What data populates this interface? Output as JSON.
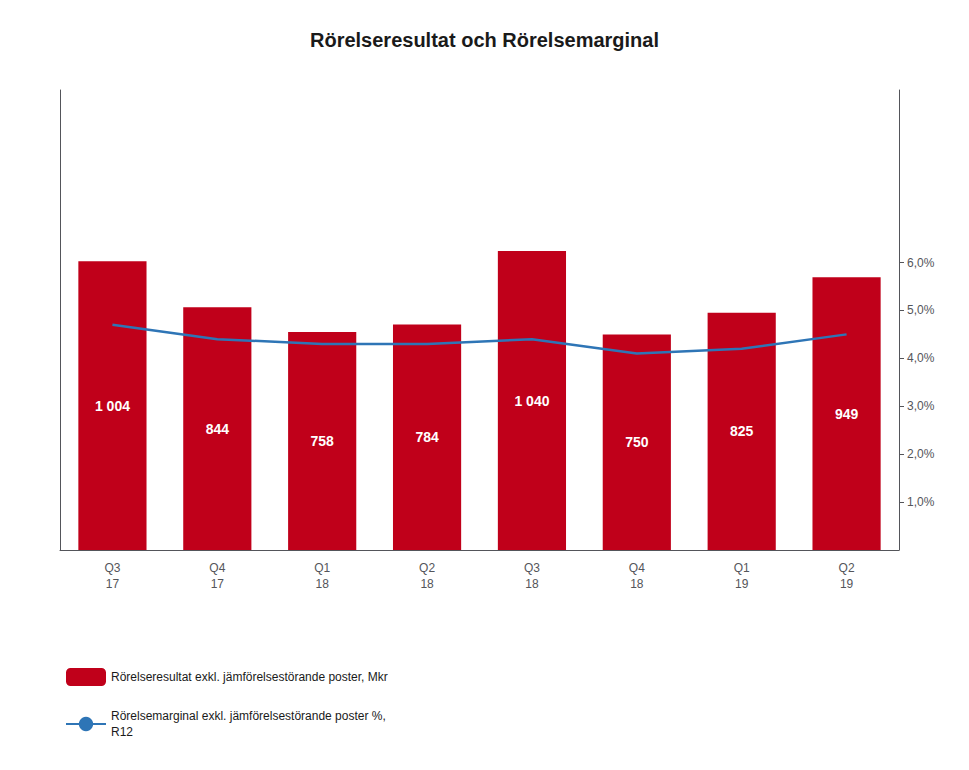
{
  "chart_data": {
    "type": "bar",
    "title": "Rörelseresultat och Rörelsemarginal",
    "categories": [
      "Q3\n17",
      "Q4\n17",
      "Q1\n18",
      "Q2\n18",
      "Q3\n18",
      "Q4\n18",
      "Q1\n19",
      "Q2\n19"
    ],
    "series": [
      {
        "name": "Rörelseresultat exkl. jämförelsestörande poster, Mkr",
        "type": "bar",
        "color": "#C0001A",
        "values": [
          1004,
          844,
          758,
          784,
          1040,
          750,
          825,
          949
        ],
        "value_labels": [
          "1 004",
          "844",
          "758",
          "784",
          "1 040",
          "750",
          "825",
          "949"
        ],
        "data_labels": true
      },
      {
        "name": "Rörelsemarginal exkl. jämförelsestörande poster %,\nR12",
        "type": "line",
        "color": "#2E75B6",
        "axis": "y2",
        "values": [
          4.7,
          4.4,
          4.3,
          4.3,
          4.4,
          4.1,
          4.2,
          4.5
        ]
      }
    ],
    "ylim": [
      0,
      1600
    ],
    "yticks": [],
    "y2lim": [
      0,
      9.6
    ],
    "y2ticks": [
      {
        "value": 1.0,
        "label": "1,0%"
      },
      {
        "value": 2.0,
        "label": "2,0%"
      },
      {
        "value": 3.0,
        "label": "3,0%"
      },
      {
        "value": 4.0,
        "label": "4,0%"
      },
      {
        "value": 5.0,
        "label": "5,0%"
      },
      {
        "value": 6.0,
        "label": "6,0%"
      }
    ],
    "grid": false,
    "legend": "lower left"
  }
}
